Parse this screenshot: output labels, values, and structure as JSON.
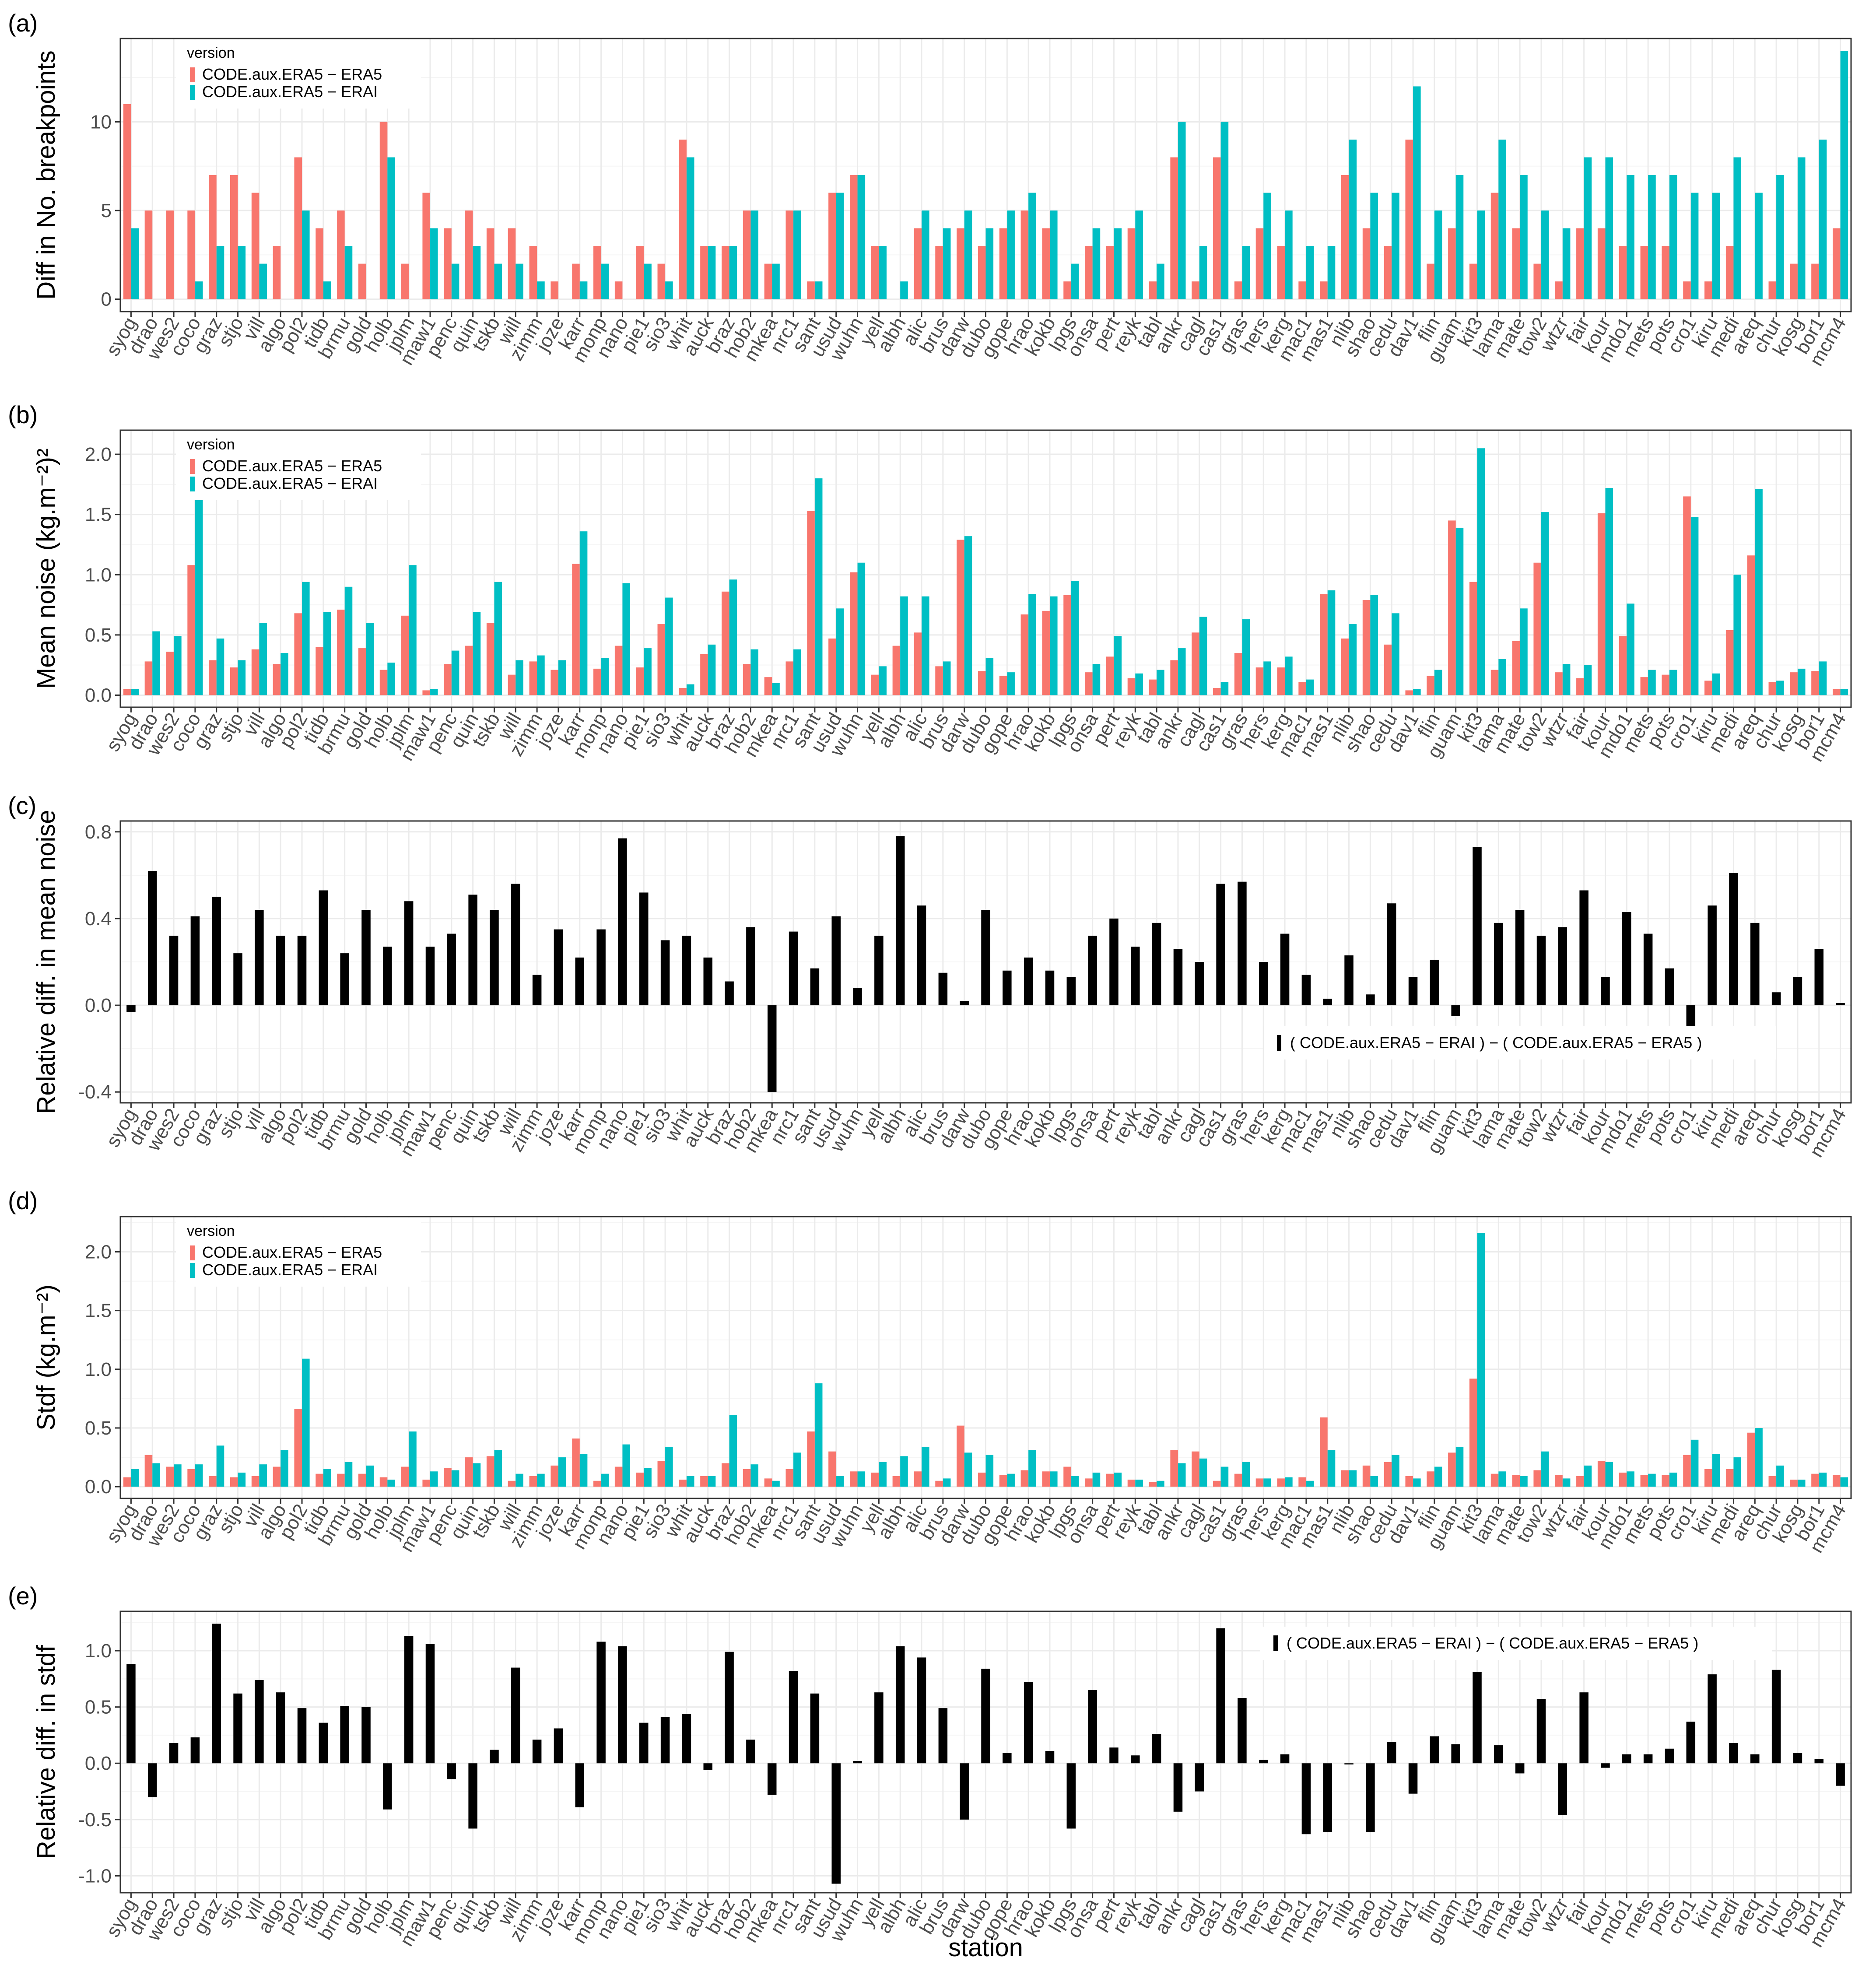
{
  "stations": [
    "syog",
    "drao",
    "wes2",
    "coco",
    "graz",
    "stjo",
    "vill",
    "algo",
    "pol2",
    "tidb",
    "brmu",
    "gold",
    "holb",
    "jplm",
    "maw1",
    "penc",
    "quin",
    "tskb",
    "will",
    "zimm",
    "joze",
    "karr",
    "monp",
    "nano",
    "pie1",
    "sio3",
    "whit",
    "auck",
    "braz",
    "hob2",
    "mkea",
    "nrc1",
    "sant",
    "usud",
    "wuhn",
    "yell",
    "albh",
    "alic",
    "brus",
    "darw",
    "dubo",
    "gope",
    "hrao",
    "kokb",
    "lpgs",
    "onsa",
    "pert",
    "reyk",
    "tabl",
    "ankr",
    "cagl",
    "cas1",
    "gras",
    "hers",
    "kerg",
    "mac1",
    "mas1",
    "nlib",
    "shao",
    "cedu",
    "dav1",
    "flin",
    "guam",
    "kit3",
    "lama",
    "mate",
    "tow2",
    "wtzr",
    "fair",
    "kour",
    "mdo1",
    "mets",
    "pots",
    "cro1",
    "kiru",
    "medi",
    "areq",
    "chur",
    "kosg",
    "bor1",
    "mcm4"
  ],
  "colors": {
    "era5": "#F8766D",
    "erai": "#00BFC4",
    "diff": "#000000",
    "panel_border": "#333333",
    "grid_major": "#EBEBEB",
    "grid_minor": "#F5F5F5"
  },
  "xlabel": "station",
  "chart_data": [
    {
      "id": "a",
      "tag": "(a)",
      "type": "bar",
      "ylabel": "Diff in No. breakpoints",
      "ylim": [
        -0.7,
        14.7
      ],
      "yticks": [
        0,
        5,
        10
      ],
      "ytick_labels": [
        "0",
        "5",
        "10"
      ],
      "legend": {
        "title": "version",
        "position": "top-left"
      },
      "series": [
        {
          "name": "CODE.aux.ERA5 − ERA5",
          "color": "#F8766D",
          "values": [
            11,
            5,
            5,
            5,
            7,
            7,
            6,
            3,
            8,
            4,
            5,
            2,
            10,
            2,
            6,
            4,
            5,
            4,
            4,
            3,
            1,
            2,
            3,
            1,
            3,
            2,
            9,
            3,
            3,
            5,
            2,
            5,
            1,
            6,
            7,
            3,
            0,
            4,
            3,
            4,
            3,
            4,
            5,
            4,
            1,
            3,
            3,
            4,
            1,
            8,
            1,
            8,
            1,
            4,
            3,
            1,
            1,
            7,
            4,
            3,
            9,
            2,
            4,
            2,
            6,
            4,
            2,
            1,
            4,
            4,
            3,
            3,
            3,
            1,
            1,
            3,
            0,
            1,
            2,
            2,
            4
          ]
        },
        {
          "name": "CODE.aux.ERA5 − ERAI",
          "color": "#00BFC4",
          "values": [
            4,
            0,
            0,
            1,
            3,
            3,
            2,
            0,
            5,
            1,
            3,
            0,
            8,
            0,
            4,
            2,
            3,
            2,
            2,
            1,
            0,
            1,
            2,
            0,
            2,
            1,
            8,
            3,
            3,
            5,
            2,
            5,
            1,
            6,
            7,
            3,
            1,
            5,
            4,
            5,
            4,
            5,
            6,
            5,
            2,
            4,
            4,
            5,
            2,
            10,
            3,
            10,
            3,
            6,
            5,
            3,
            3,
            9,
            6,
            6,
            12,
            5,
            7,
            5,
            9,
            7,
            5,
            4,
            8,
            8,
            7,
            7,
            7,
            6,
            6,
            8,
            6,
            7,
            8,
            9,
            14
          ]
        }
      ]
    },
    {
      "id": "b",
      "tag": "(b)",
      "type": "bar",
      "ylabel": "Mean noise (kg.m⁻²)²",
      "ylim": [
        -0.1,
        2.2
      ],
      "yticks": [
        0,
        0.5,
        1.0,
        1.5,
        2.0
      ],
      "ytick_labels": [
        "0.0",
        "0.5",
        "1.0",
        "1.5",
        "2.0"
      ],
      "legend": {
        "title": "version",
        "position": "top-left"
      },
      "series": [
        {
          "name": "CODE.aux.ERA5 − ERA5",
          "color": "#F8766D",
          "values": [
            0.05,
            0.28,
            0.36,
            1.08,
            0.29,
            0.23,
            0.38,
            0.26,
            0.68,
            0.4,
            0.71,
            0.39,
            0.21,
            0.66,
            0.04,
            0.26,
            0.41,
            0.6,
            0.17,
            0.28,
            0.21,
            1.09,
            0.22,
            0.41,
            0.23,
            0.59,
            0.06,
            0.34,
            0.86,
            0.26,
            0.15,
            0.28,
            1.53,
            0.47,
            1.02,
            0.17,
            0.41,
            0.52,
            0.24,
            1.29,
            0.2,
            0.16,
            0.67,
            0.7,
            0.83,
            0.19,
            0.32,
            0.14,
            0.13,
            0.29,
            0.52,
            0.06,
            0.35,
            0.23,
            0.23,
            0.11,
            0.84,
            0.47,
            0.79,
            0.42,
            0.04,
            0.16,
            1.45,
            0.94,
            0.21,
            0.45,
            1.1,
            0.19,
            0.14,
            1.51,
            0.49,
            0.15,
            0.17,
            1.65,
            0.12,
            0.54,
            1.16,
            0.11,
            0.19,
            0.2,
            0.05
          ]
        },
        {
          "name": "CODE.aux.ERA5 − ERAI",
          "color": "#00BFC4",
          "values": [
            0.05,
            0.53,
            0.49,
            1.62,
            0.47,
            0.29,
            0.6,
            0.35,
            0.94,
            0.69,
            0.9,
            0.6,
            0.27,
            1.08,
            0.05,
            0.37,
            0.69,
            0.94,
            0.29,
            0.33,
            0.29,
            1.36,
            0.31,
            0.93,
            0.39,
            0.81,
            0.09,
            0.42,
            0.96,
            0.38,
            0.1,
            0.38,
            1.8,
            0.72,
            1.1,
            0.24,
            0.82,
            0.82,
            0.28,
            1.32,
            0.31,
            0.19,
            0.84,
            0.82,
            0.95,
            0.26,
            0.49,
            0.18,
            0.21,
            0.39,
            0.65,
            0.11,
            0.63,
            0.28,
            0.32,
            0.13,
            0.87,
            0.59,
            0.83,
            0.68,
            0.05,
            0.21,
            1.39,
            2.05,
            0.3,
            0.72,
            1.52,
            0.26,
            0.25,
            1.72,
            0.76,
            0.21,
            0.21,
            1.48,
            0.18,
            1.0,
            1.71,
            0.12,
            0.22,
            0.28,
            0.05
          ]
        }
      ]
    },
    {
      "id": "c",
      "tag": "(c)",
      "type": "bar",
      "ylabel": "Relative diff. in mean noise",
      "ylim": [
        -0.45,
        0.85
      ],
      "yticks": [
        -0.4,
        0.0,
        0.4,
        0.8
      ],
      "ytick_labels": [
        "-0.4",
        "0.0",
        "0.4",
        "0.8"
      ],
      "legend": {
        "title": "",
        "position": "bottom-right"
      },
      "series": [
        {
          "name": "( CODE.aux.ERA5 − ERAI )  −  ( CODE.aux.ERA5 − ERA5 )",
          "color": "#000000",
          "values": [
            -0.03,
            0.62,
            0.32,
            0.41,
            0.5,
            0.24,
            0.44,
            0.32,
            0.32,
            0.53,
            0.24,
            0.44,
            0.27,
            0.48,
            0.27,
            0.33,
            0.51,
            0.44,
            0.56,
            0.14,
            0.35,
            0.22,
            0.35,
            0.77,
            0.52,
            0.3,
            0.32,
            0.22,
            0.11,
            0.36,
            -0.4,
            0.34,
            0.17,
            0.41,
            0.08,
            0.32,
            0.78,
            0.46,
            0.15,
            0.02,
            0.44,
            0.16,
            0.22,
            0.16,
            0.13,
            0.32,
            0.4,
            0.27,
            0.38,
            0.26,
            0.2,
            0.56,
            0.57,
            0.2,
            0.33,
            0.14,
            0.03,
            0.23,
            0.05,
            0.47,
            0.13,
            0.21,
            -0.05,
            0.73,
            0.38,
            0.44,
            0.32,
            0.36,
            0.53,
            0.13,
            0.43,
            0.33,
            0.17,
            -0.12,
            0.46,
            0.61,
            0.38,
            0.06,
            0.13,
            0.26,
            0.01
          ]
        }
      ]
    },
    {
      "id": "d",
      "tag": "(d)",
      "type": "bar",
      "ylabel": "Stdf (kg.m⁻²)",
      "ylim": [
        -0.1,
        2.3
      ],
      "yticks": [
        0,
        0.5,
        1.0,
        1.5,
        2.0
      ],
      "ytick_labels": [
        "0.0",
        "0.5",
        "1.0",
        "1.5",
        "2.0"
      ],
      "legend": {
        "title": "version",
        "position": "top-left"
      },
      "series": [
        {
          "name": "CODE.aux.ERA5 − ERA5",
          "color": "#F8766D",
          "values": [
            0.08,
            0.27,
            0.17,
            0.15,
            0.09,
            0.08,
            0.09,
            0.17,
            0.66,
            0.11,
            0.11,
            0.11,
            0.08,
            0.17,
            0.06,
            0.16,
            0.25,
            0.26,
            0.05,
            0.09,
            0.18,
            0.41,
            0.05,
            0.17,
            0.12,
            0.22,
            0.06,
            0.09,
            0.2,
            0.15,
            0.07,
            0.15,
            0.47,
            0.3,
            0.13,
            0.12,
            0.09,
            0.13,
            0.05,
            0.52,
            0.12,
            0.1,
            0.14,
            0.13,
            0.17,
            0.07,
            0.11,
            0.06,
            0.04,
            0.31,
            0.3,
            0.05,
            0.11,
            0.07,
            0.07,
            0.08,
            0.59,
            0.14,
            0.18,
            0.21,
            0.09,
            0.13,
            0.29,
            0.92,
            0.11,
            0.1,
            0.14,
            0.1,
            0.09,
            0.22,
            0.12,
            0.1,
            0.1,
            0.27,
            0.15,
            0.15,
            0.46,
            0.09,
            0.06,
            0.11,
            0.1
          ]
        },
        {
          "name": "CODE.aux.ERA5 − ERAI",
          "color": "#00BFC4",
          "values": [
            0.15,
            0.2,
            0.19,
            0.19,
            0.35,
            0.12,
            0.19,
            0.31,
            1.09,
            0.15,
            0.21,
            0.18,
            0.06,
            0.47,
            0.13,
            0.14,
            0.2,
            0.31,
            0.11,
            0.11,
            0.25,
            0.28,
            0.11,
            0.36,
            0.16,
            0.34,
            0.09,
            0.09,
            0.61,
            0.19,
            0.05,
            0.29,
            0.88,
            0.09,
            0.13,
            0.21,
            0.26,
            0.34,
            0.07,
            0.29,
            0.27,
            0.11,
            0.31,
            0.13,
            0.09,
            0.12,
            0.12,
            0.06,
            0.05,
            0.2,
            0.24,
            0.17,
            0.21,
            0.07,
            0.08,
            0.05,
            0.31,
            0.14,
            0.09,
            0.27,
            0.07,
            0.17,
            0.34,
            2.16,
            0.13,
            0.09,
            0.3,
            0.07,
            0.18,
            0.21,
            0.13,
            0.11,
            0.12,
            0.4,
            0.28,
            0.25,
            0.5,
            0.18,
            0.06,
            0.12,
            0.08
          ]
        }
      ]
    },
    {
      "id": "e",
      "tag": "(e)",
      "type": "bar",
      "ylabel": "Relative diff. in stdf",
      "ylim": [
        -1.15,
        1.35
      ],
      "yticks": [
        -1.0,
        -0.5,
        0.0,
        0.5,
        1.0
      ],
      "ytick_labels": [
        "-1.0",
        "-0.5",
        "0.0",
        "0.5",
        "1.0"
      ],
      "legend": {
        "title": "",
        "position": "top-right"
      },
      "series": [
        {
          "name": "( CODE.aux.ERA5 − ERAI )  −  ( CODE.aux.ERA5 − ERA5 )",
          "color": "#000000",
          "values": [
            0.88,
            -0.3,
            0.18,
            0.23,
            1.24,
            0.62,
            0.74,
            0.63,
            0.49,
            0.36,
            0.51,
            0.5,
            -0.41,
            1.13,
            1.06,
            -0.14,
            -0.58,
            0.12,
            0.85,
            0.21,
            0.31,
            -0.39,
            1.08,
            1.04,
            0.36,
            0.41,
            0.44,
            -0.06,
            0.99,
            0.21,
            -0.28,
            0.82,
            0.62,
            -1.07,
            0.02,
            0.63,
            1.04,
            0.94,
            0.49,
            -0.5,
            0.84,
            0.09,
            0.72,
            0.11,
            -0.58,
            0.65,
            0.14,
            0.07,
            0.26,
            -0.43,
            -0.25,
            1.2,
            0.58,
            0.03,
            0.08,
            -0.63,
            -0.61,
            -0.01,
            -0.61,
            0.19,
            -0.27,
            0.24,
            0.17,
            0.81,
            0.16,
            -0.09,
            0.57,
            -0.46,
            0.63,
            -0.04,
            0.08,
            0.08,
            0.13,
            0.37,
            0.79,
            0.18,
            0.08,
            0.83,
            0.09,
            0.04,
            -0.2
          ]
        }
      ]
    }
  ]
}
